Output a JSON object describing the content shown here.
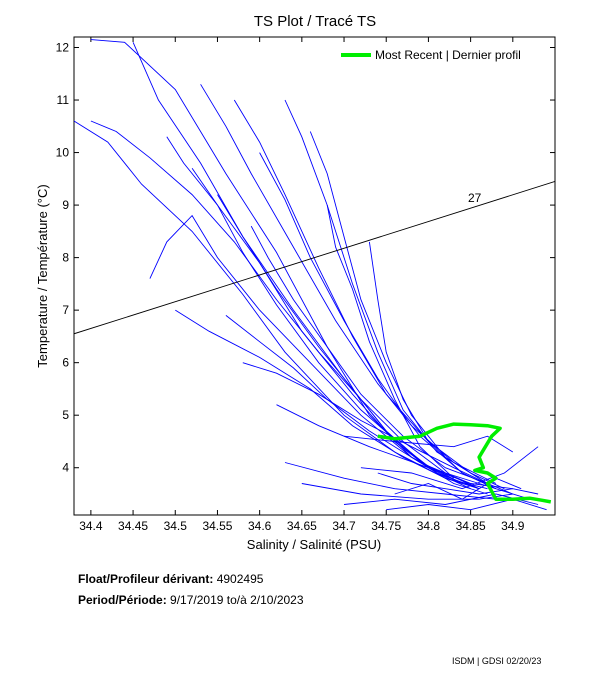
{
  "chart_data": {
    "type": "line",
    "title": "TS Plot / Tracé TS",
    "xlabel": "Salinity / Salinité (PSU)",
    "ylabel": "Temperature / Température (°C)",
    "xlim": [
      34.38,
      34.95
    ],
    "ylim": [
      3.1,
      12.2
    ],
    "x_ticks": [
      34.4,
      34.45,
      34.5,
      34.55,
      34.6,
      34.65,
      34.7,
      34.75,
      34.8,
      34.85,
      34.9
    ],
    "x_tick_labels": [
      "34.4",
      "34.45",
      "34.5",
      "34.55",
      "34.6",
      "34.65",
      "34.7",
      "34.75",
      "34.8",
      "34.85",
      "34.9"
    ],
    "y_ticks": [
      4,
      5,
      6,
      7,
      8,
      9,
      10,
      11,
      12
    ],
    "y_tick_labels": [
      "4",
      "5",
      "6",
      "7",
      "8",
      "9",
      "10",
      "11",
      "12"
    ],
    "density_line": {
      "label": "27",
      "points": [
        [
          34.38,
          6.55
        ],
        [
          34.95,
          9.45
        ]
      ],
      "color": "#000000"
    },
    "legend": {
      "label": "Most Recent | Dernier profil",
      "position": "top-right"
    },
    "series": [
      {
        "name": "p1",
        "color": "#0000ff",
        "x": [
          34.4,
          34.44,
          34.5,
          34.56,
          34.62,
          34.68,
          34.73,
          34.78,
          34.83,
          34.87
        ],
        "y": [
          12.15,
          12.1,
          11.2,
          9.6,
          8.1,
          6.3,
          5.0,
          4.2,
          3.7,
          3.5
        ]
      },
      {
        "name": "p2",
        "color": "#0000ff",
        "x": [
          34.38,
          34.42,
          34.46,
          34.52,
          34.58,
          34.63,
          34.7,
          34.76,
          34.82,
          34.86
        ],
        "y": [
          10.6,
          10.2,
          9.4,
          8.5,
          7.3,
          6.2,
          5.0,
          4.3,
          3.8,
          3.6
        ]
      },
      {
        "name": "p3",
        "color": "#0000ff",
        "x": [
          34.45,
          34.48,
          34.53,
          34.58,
          34.64,
          34.7,
          34.75,
          34.8,
          34.85,
          34.9
        ],
        "y": [
          12.1,
          11.0,
          9.8,
          8.4,
          7.0,
          5.7,
          4.7,
          4.0,
          3.7,
          3.6
        ]
      },
      {
        "name": "p4",
        "color": "#0000ff",
        "x": [
          34.47,
          34.49,
          34.52,
          34.55,
          34.6,
          34.66,
          34.72,
          34.78,
          34.84
        ],
        "y": [
          7.6,
          8.3,
          8.8,
          8.0,
          7.0,
          6.0,
          5.0,
          4.2,
          3.7
        ]
      },
      {
        "name": "p5",
        "color": "#0000ff",
        "x": [
          34.49,
          34.51,
          34.55,
          34.6,
          34.65,
          34.71,
          34.76,
          34.81,
          34.86
        ],
        "y": [
          10.3,
          9.8,
          9.0,
          7.9,
          6.6,
          5.4,
          4.5,
          3.9,
          3.6
        ]
      },
      {
        "name": "p6",
        "color": "#0000ff",
        "x": [
          34.5,
          34.54,
          34.6,
          34.66,
          34.71,
          34.77,
          34.82,
          34.87
        ],
        "y": [
          7.0,
          6.6,
          6.1,
          5.5,
          4.8,
          4.2,
          3.8,
          3.6
        ]
      },
      {
        "name": "p7",
        "color": "#0000ff",
        "x": [
          34.53,
          34.56,
          34.59,
          34.64,
          34.69,
          34.74,
          34.79,
          34.84,
          34.88
        ],
        "y": [
          11.3,
          10.5,
          9.6,
          8.2,
          6.8,
          5.6,
          4.6,
          3.9,
          3.6
        ]
      },
      {
        "name": "p8",
        "color": "#0000ff",
        "x": [
          34.55,
          34.58,
          34.62,
          34.67,
          34.72,
          34.76,
          34.8,
          34.84
        ],
        "y": [
          9.2,
          8.4,
          7.4,
          6.3,
          5.3,
          4.5,
          4.0,
          3.7
        ]
      },
      {
        "name": "p9",
        "color": "#0000ff",
        "x": [
          34.57,
          34.6,
          34.63,
          34.67,
          34.71,
          34.75,
          34.8,
          34.85,
          34.89
        ],
        "y": [
          11.0,
          10.2,
          9.2,
          7.8,
          6.5,
          5.4,
          4.5,
          3.9,
          3.6
        ]
      },
      {
        "name": "p10",
        "color": "#0000ff",
        "x": [
          34.6,
          34.63,
          34.66,
          34.7,
          34.74,
          34.78,
          34.83,
          34.88
        ],
        "y": [
          10.0,
          9.1,
          8.0,
          6.8,
          5.7,
          4.8,
          4.1,
          3.7
        ]
      },
      {
        "name": "p11",
        "color": "#0000ff",
        "x": [
          34.63,
          34.65,
          34.68,
          34.71,
          34.74,
          34.77,
          34.81,
          34.86
        ],
        "y": [
          11.0,
          10.3,
          9.0,
          7.5,
          6.2,
          5.1,
          4.3,
          3.8
        ]
      },
      {
        "name": "p12",
        "color": "#0000ff",
        "x": [
          34.66,
          34.68,
          34.7,
          34.72,
          34.75,
          34.78,
          34.82,
          34.87
        ],
        "y": [
          10.4,
          9.6,
          8.4,
          7.2,
          6.0,
          5.0,
          4.2,
          3.7
        ]
      },
      {
        "name": "p13",
        "color": "#0000ff",
        "x": [
          34.68,
          34.69,
          34.71,
          34.73,
          34.76,
          34.79,
          34.83
        ],
        "y": [
          9.0,
          8.2,
          7.4,
          6.4,
          5.3,
          4.4,
          3.8
        ]
      },
      {
        "name": "p14",
        "color": "#0000ff",
        "x": [
          34.73,
          34.74,
          34.75,
          34.77,
          34.8,
          34.84,
          34.88
        ],
        "y": [
          8.3,
          7.2,
          6.2,
          5.3,
          4.5,
          3.9,
          3.6
        ]
      },
      {
        "name": "p15",
        "color": "#0000ff",
        "x": [
          34.58,
          34.62,
          34.67,
          34.72,
          34.78,
          34.83,
          34.87,
          34.9
        ],
        "y": [
          6.0,
          5.8,
          5.4,
          4.9,
          4.4,
          4.0,
          3.7,
          3.5
        ]
      },
      {
        "name": "p16",
        "color": "#0000ff",
        "x": [
          34.62,
          34.67,
          34.73,
          34.8,
          34.86,
          34.9
        ],
        "y": [
          5.2,
          4.8,
          4.4,
          4.0,
          3.7,
          3.5
        ]
      },
      {
        "name": "p17",
        "color": "#0000ff",
        "x": [
          34.63,
          34.7,
          34.76,
          34.82,
          34.88
        ],
        "y": [
          4.1,
          3.8,
          3.6,
          3.5,
          3.4
        ]
      },
      {
        "name": "p18",
        "color": "#0000ff",
        "x": [
          34.65,
          34.72,
          34.8,
          34.86,
          34.9,
          34.92
        ],
        "y": [
          3.7,
          3.5,
          3.4,
          3.4,
          3.5,
          3.4
        ]
      },
      {
        "name": "p19",
        "color": "#0000ff",
        "x": [
          34.7,
          34.76,
          34.82,
          34.88,
          34.93
        ],
        "y": [
          3.3,
          3.4,
          3.3,
          3.5,
          3.3
        ]
      },
      {
        "name": "p20",
        "color": "#0000ff",
        "x": [
          34.72,
          34.78,
          34.84,
          34.89,
          34.93
        ],
        "y": [
          4.0,
          3.9,
          3.6,
          3.9,
          4.4
        ]
      },
      {
        "name": "p21",
        "color": "#0000ff",
        "x": [
          34.7,
          34.76,
          34.83,
          34.87,
          34.9
        ],
        "y": [
          4.6,
          4.5,
          4.4,
          4.6,
          4.3
        ]
      },
      {
        "name": "p22",
        "color": "#0000ff",
        "x": [
          34.75,
          34.8,
          34.85,
          34.9,
          34.94
        ],
        "y": [
          3.2,
          3.3,
          3.2,
          3.4,
          3.2
        ]
      },
      {
        "name": "p23",
        "color": "#0000ff",
        "x": [
          34.4,
          34.43,
          34.47,
          34.52,
          34.57,
          34.62,
          34.67,
          34.72,
          34.77,
          34.82,
          34.86
        ],
        "y": [
          10.6,
          10.4,
          9.9,
          9.2,
          8.3,
          7.2,
          6.2,
          5.3,
          4.5,
          3.9,
          3.6
        ]
      },
      {
        "name": "p24",
        "color": "#0000ff",
        "x": [
          34.52,
          34.55,
          34.58,
          34.62,
          34.67,
          34.72,
          34.77,
          34.81,
          34.85
        ],
        "y": [
          9.7,
          9.0,
          8.1,
          7.1,
          6.0,
          5.1,
          4.4,
          3.9,
          3.6
        ]
      },
      {
        "name": "p25",
        "color": "#0000ff",
        "x": [
          34.56,
          34.6,
          34.64,
          34.68,
          34.73,
          34.79,
          34.85
        ],
        "y": [
          6.9,
          6.4,
          5.9,
          5.3,
          4.7,
          4.1,
          3.7
        ]
      },
      {
        "name": "p26",
        "color": "#0000ff",
        "x": [
          34.59,
          34.61,
          34.64,
          34.68,
          34.72,
          34.77,
          34.82,
          34.87
        ],
        "y": [
          8.6,
          8.0,
          7.2,
          6.3,
          5.4,
          4.6,
          4.0,
          3.7
        ]
      },
      {
        "name": "p27",
        "color": "#0000ff",
        "x": [
          34.74,
          34.78,
          34.82,
          34.86,
          34.9,
          34.93
        ],
        "y": [
          3.9,
          3.7,
          3.6,
          3.5,
          3.6,
          3.5
        ]
      },
      {
        "name": "p28",
        "color": "#0000ff",
        "x": [
          34.76,
          34.8,
          34.84,
          34.88,
          34.91
        ],
        "y": [
          3.5,
          3.7,
          3.4,
          3.8,
          3.6
        ]
      }
    ],
    "recent_profile": {
      "name": "Most Recent | Dernier profil",
      "color": "#00ee00",
      "x": [
        34.74,
        34.76,
        34.79,
        34.81,
        34.83,
        34.85,
        34.87,
        34.885,
        34.875,
        34.86,
        34.865,
        34.855,
        34.87,
        34.88,
        34.87,
        34.875,
        34.88,
        34.9,
        34.92,
        34.935,
        34.945
      ],
      "y": [
        4.6,
        4.55,
        4.6,
        4.75,
        4.83,
        4.82,
        4.8,
        4.75,
        4.6,
        4.2,
        4.0,
        3.95,
        3.9,
        3.8,
        3.7,
        3.55,
        3.4,
        3.4,
        3.42,
        3.38,
        3.35
      ]
    }
  },
  "info": {
    "float_label": "Float/Profileur dérivant:",
    "float_id": "4902495",
    "period_label": "Period/Période:",
    "start_date": "9/17/2019",
    "to_label": "to/à",
    "end_date": "2/10/2023"
  },
  "footer": "ISDM | GDSI  02/20/23"
}
